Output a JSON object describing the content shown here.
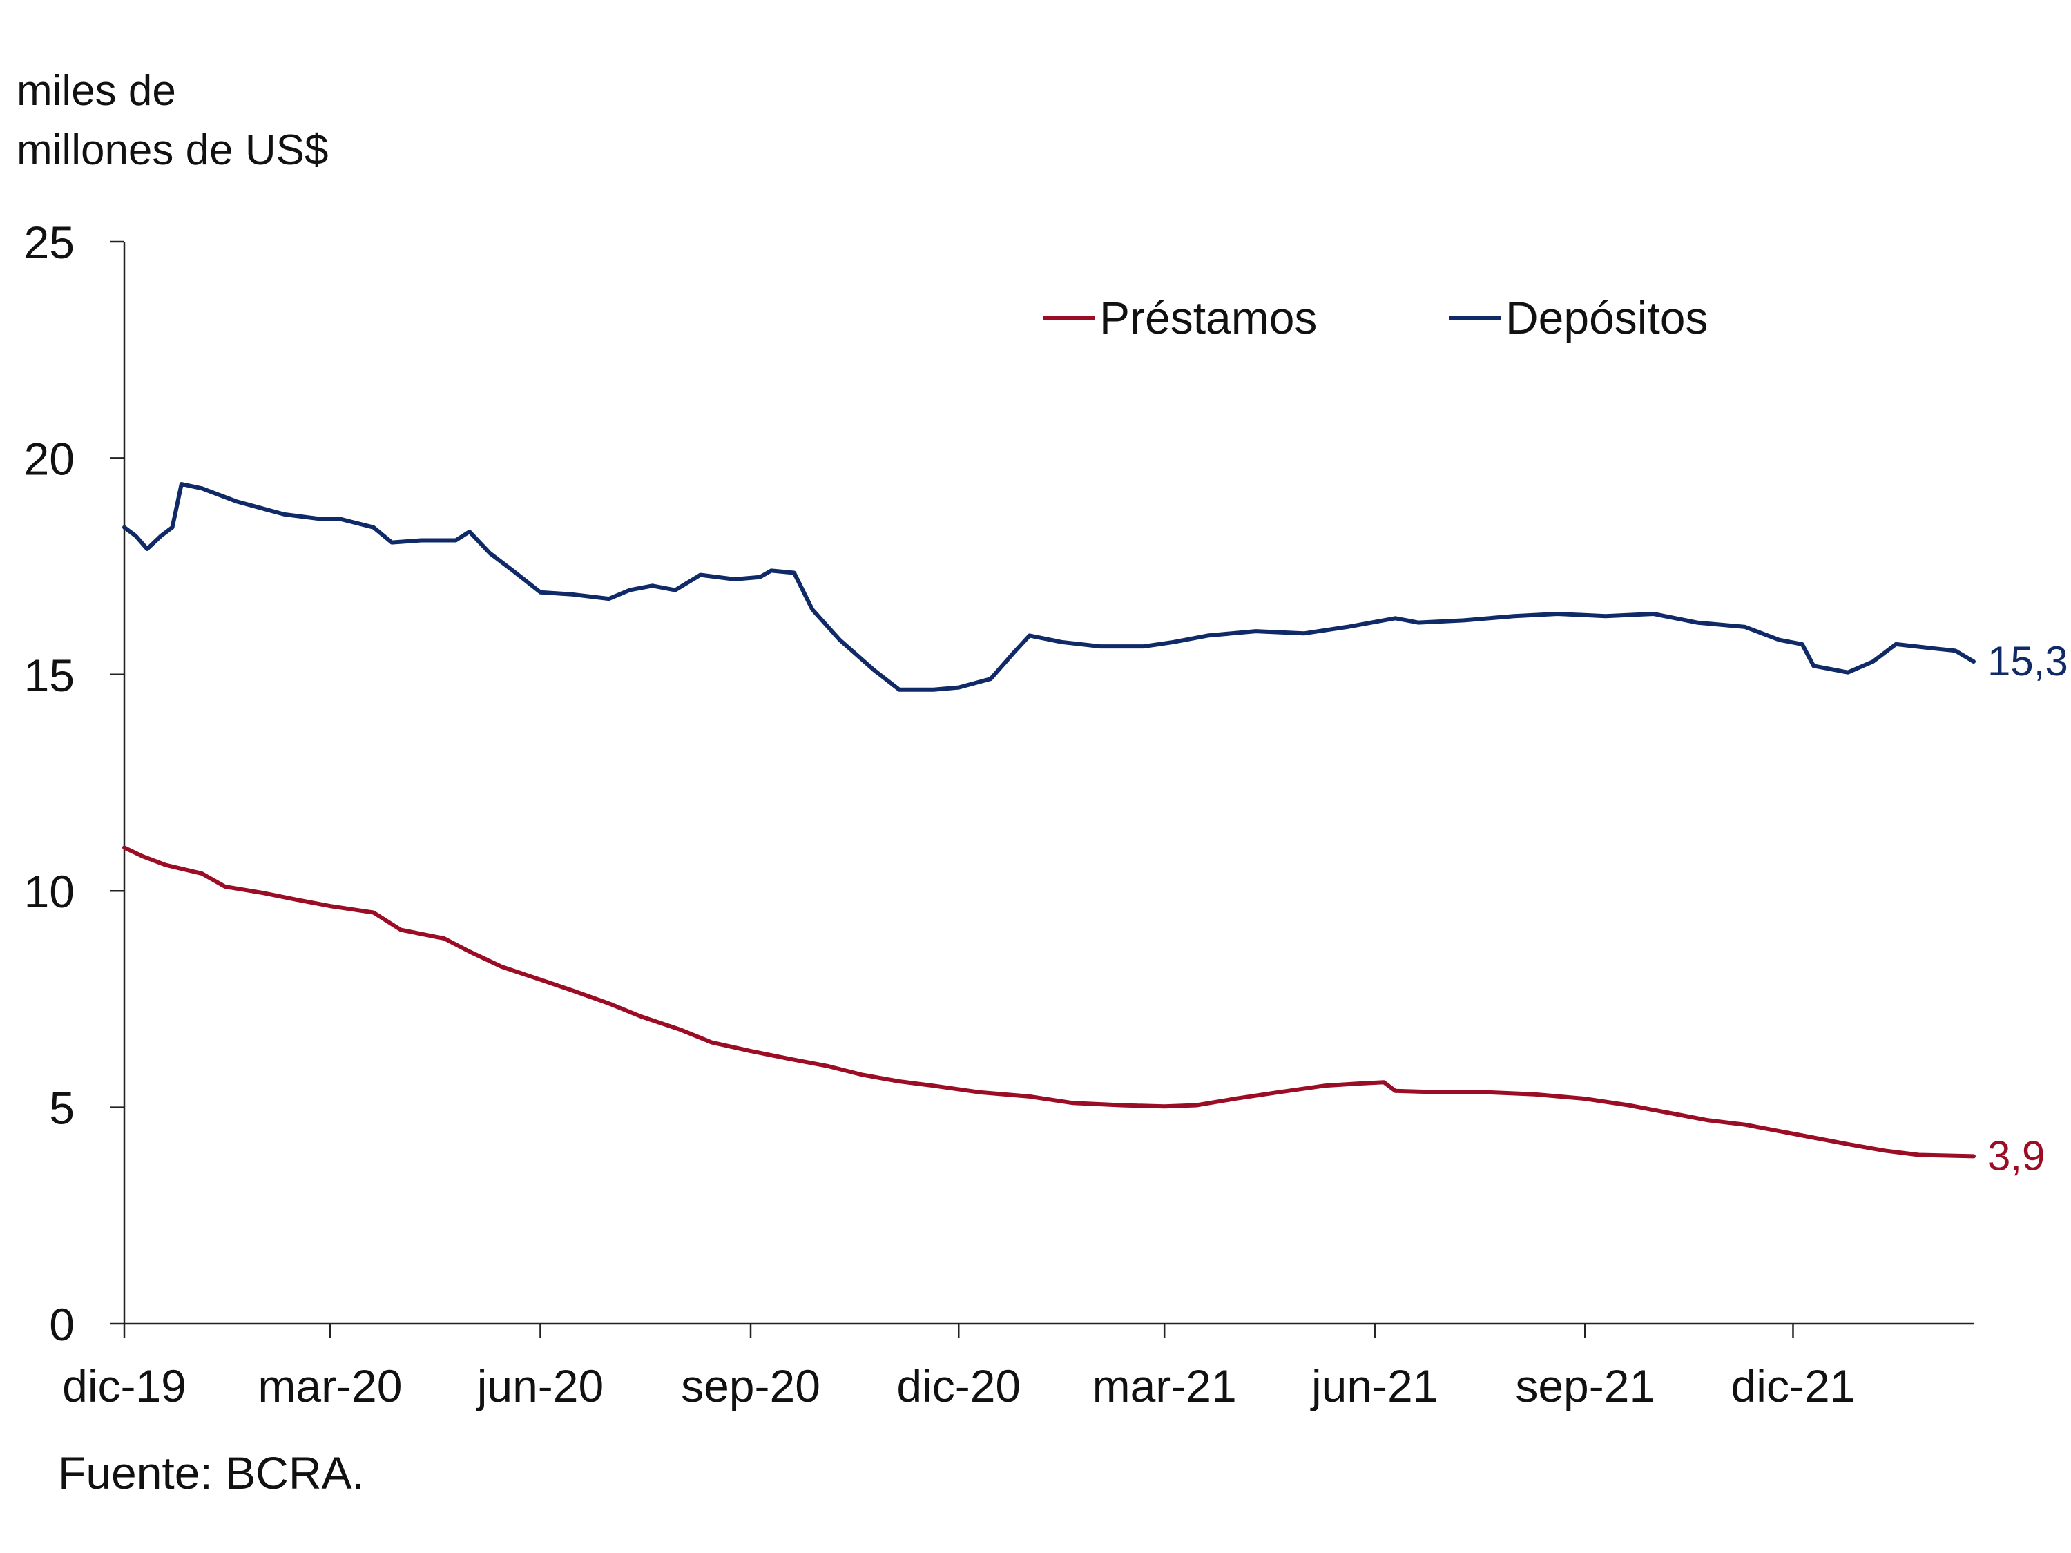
{
  "chart_data": {
    "type": "line",
    "ylabel": [
      "miles de",
      "millones de US$"
    ],
    "ylim": [
      0,
      25
    ],
    "yticks": [
      0,
      5,
      10,
      15,
      20,
      25
    ],
    "xlim": [
      "2019-12-02",
      "2022-02-18"
    ],
    "xticks": [
      {
        "date": "2019-12-01",
        "label": "dic-19"
      },
      {
        "date": "2020-03-01",
        "label": "mar-20"
      },
      {
        "date": "2020-06-01",
        "label": "jun-20"
      },
      {
        "date": "2020-09-01",
        "label": "sep-20"
      },
      {
        "date": "2020-12-01",
        "label": "dic-20"
      },
      {
        "date": "2021-03-01",
        "label": "mar-21"
      },
      {
        "date": "2021-06-01",
        "label": "jun-21"
      },
      {
        "date": "2021-09-01",
        "label": "sep-21"
      },
      {
        "date": "2021-12-01",
        "label": "dic-21"
      }
    ],
    "legend_position": "top-right",
    "grid": false,
    "series": [
      {
        "name": "Préstamos",
        "color": "#9b0d25",
        "end_label": "3,9",
        "points": [
          [
            "2019-12-02",
            11.0
          ],
          [
            "2019-12-10",
            10.8
          ],
          [
            "2019-12-20",
            10.6
          ],
          [
            "2020-01-05",
            10.4
          ],
          [
            "2020-01-15",
            10.1
          ],
          [
            "2020-02-01",
            9.95
          ],
          [
            "2020-02-15",
            9.8
          ],
          [
            "2020-03-01",
            9.65
          ],
          [
            "2020-03-20",
            9.5
          ],
          [
            "2020-04-01",
            9.1
          ],
          [
            "2020-04-20",
            8.9
          ],
          [
            "2020-05-01",
            8.6
          ],
          [
            "2020-05-15",
            8.25
          ],
          [
            "2020-06-01",
            7.95
          ],
          [
            "2020-06-15",
            7.7
          ],
          [
            "2020-07-01",
            7.4
          ],
          [
            "2020-07-15",
            7.1
          ],
          [
            "2020-08-01",
            6.8
          ],
          [
            "2020-08-15",
            6.5
          ],
          [
            "2020-09-01",
            6.3
          ],
          [
            "2020-09-20",
            6.1
          ],
          [
            "2020-10-05",
            5.95
          ],
          [
            "2020-10-20",
            5.75
          ],
          [
            "2020-11-05",
            5.6
          ],
          [
            "2020-11-20",
            5.5
          ],
          [
            "2020-12-10",
            5.35
          ],
          [
            "2021-01-01",
            5.25
          ],
          [
            "2021-01-20",
            5.1
          ],
          [
            "2021-02-10",
            5.05
          ],
          [
            "2021-03-01",
            5.02
          ],
          [
            "2021-03-15",
            5.05
          ],
          [
            "2021-04-01",
            5.2
          ],
          [
            "2021-04-20",
            5.35
          ],
          [
            "2021-05-10",
            5.5
          ],
          [
            "2021-05-25",
            5.55
          ],
          [
            "2021-06-05",
            5.58
          ],
          [
            "2021-06-10",
            5.38
          ],
          [
            "2021-06-30",
            5.35
          ],
          [
            "2021-07-20",
            5.35
          ],
          [
            "2021-08-10",
            5.3
          ],
          [
            "2021-09-01",
            5.2
          ],
          [
            "2021-09-20",
            5.05
          ],
          [
            "2021-10-10",
            4.85
          ],
          [
            "2021-10-25",
            4.7
          ],
          [
            "2021-11-10",
            4.6
          ],
          [
            "2021-11-25",
            4.45
          ],
          [
            "2021-12-10",
            4.3
          ],
          [
            "2021-12-25",
            4.15
          ],
          [
            "2022-01-10",
            4.0
          ],
          [
            "2022-01-25",
            3.9
          ],
          [
            "2022-02-18",
            3.87
          ]
        ]
      },
      {
        "name": "Depósitos",
        "color": "#0f2a66",
        "end_label": "15,3",
        "points": [
          [
            "2019-12-02",
            18.4
          ],
          [
            "2019-12-07",
            18.2
          ],
          [
            "2019-12-12",
            17.9
          ],
          [
            "2019-12-18",
            18.2
          ],
          [
            "2019-12-23",
            18.4
          ],
          [
            "2019-12-27",
            19.4
          ],
          [
            "2020-01-05",
            19.3
          ],
          [
            "2020-01-20",
            19.0
          ],
          [
            "2020-02-10",
            18.7
          ],
          [
            "2020-02-25",
            18.6
          ],
          [
            "2020-03-05",
            18.6
          ],
          [
            "2020-03-20",
            18.4
          ],
          [
            "2020-03-28",
            18.05
          ],
          [
            "2020-04-10",
            18.1
          ],
          [
            "2020-04-25",
            18.1
          ],
          [
            "2020-05-01",
            18.3
          ],
          [
            "2020-05-10",
            17.8
          ],
          [
            "2020-05-20",
            17.4
          ],
          [
            "2020-06-01",
            16.9
          ],
          [
            "2020-06-15",
            16.85
          ],
          [
            "2020-07-01",
            16.75
          ],
          [
            "2020-07-10",
            16.95
          ],
          [
            "2020-07-20",
            17.05
          ],
          [
            "2020-07-30",
            16.95
          ],
          [
            "2020-08-10",
            17.3
          ],
          [
            "2020-08-25",
            17.2
          ],
          [
            "2020-09-05",
            17.25
          ],
          [
            "2020-09-10",
            17.4
          ],
          [
            "2020-09-20",
            17.35
          ],
          [
            "2020-09-28",
            16.5
          ],
          [
            "2020-10-10",
            15.8
          ],
          [
            "2020-10-25",
            15.1
          ],
          [
            "2020-11-05",
            14.65
          ],
          [
            "2020-11-20",
            14.65
          ],
          [
            "2020-12-01",
            14.7
          ],
          [
            "2020-12-15",
            14.9
          ],
          [
            "2020-12-25",
            15.5
          ],
          [
            "2021-01-01",
            15.9
          ],
          [
            "2021-01-15",
            15.75
          ],
          [
            "2021-02-01",
            15.65
          ],
          [
            "2021-02-20",
            15.65
          ],
          [
            "2021-03-05",
            15.75
          ],
          [
            "2021-03-20",
            15.9
          ],
          [
            "2021-04-10",
            16.0
          ],
          [
            "2021-05-01",
            15.95
          ],
          [
            "2021-05-20",
            16.1
          ],
          [
            "2021-06-10",
            16.3
          ],
          [
            "2021-06-20",
            16.2
          ],
          [
            "2021-07-10",
            16.25
          ],
          [
            "2021-08-01",
            16.35
          ],
          [
            "2021-08-20",
            16.4
          ],
          [
            "2021-09-10",
            16.35
          ],
          [
            "2021-10-01",
            16.4
          ],
          [
            "2021-10-20",
            16.2
          ],
          [
            "2021-11-10",
            16.1
          ],
          [
            "2021-11-25",
            15.8
          ],
          [
            "2021-12-05",
            15.7
          ],
          [
            "2021-12-10",
            15.2
          ],
          [
            "2021-12-25",
            15.05
          ],
          [
            "2022-01-05",
            15.3
          ],
          [
            "2022-01-15",
            15.7
          ],
          [
            "2022-02-01",
            15.6
          ],
          [
            "2022-02-10",
            15.55
          ],
          [
            "2022-02-18",
            15.3
          ]
        ]
      }
    ]
  },
  "source": "Fuente: BCRA."
}
